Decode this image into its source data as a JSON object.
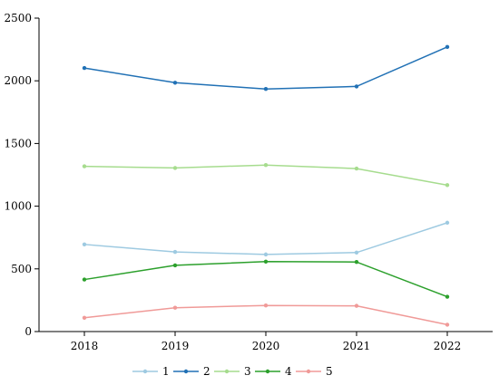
{
  "chart_data": {
    "type": "line",
    "title": "",
    "xlabel": "",
    "ylabel": "",
    "categories": [
      "2018",
      "2019",
      "2020",
      "2021",
      "2022"
    ],
    "ylim": [
      0,
      2500
    ],
    "yticks": [
      0,
      500,
      1000,
      1500,
      2000,
      2500
    ],
    "ytick_labels": [
      "0",
      "500",
      "1000",
      "1500",
      "2000",
      "2500"
    ],
    "grid": false,
    "legend_position": "bottom",
    "series": [
      {
        "name": "1",
        "color": "#9ecae1",
        "values": [
          695,
          635,
          615,
          630,
          868
        ]
      },
      {
        "name": "2",
        "color": "#2171b5",
        "values": [
          2102,
          1985,
          1935,
          1955,
          2270
        ]
      },
      {
        "name": "3",
        "color": "#a6dc8e",
        "values": [
          1318,
          1305,
          1328,
          1300,
          1168
        ]
      },
      {
        "name": "4",
        "color": "#2ca02c",
        "values": [
          415,
          528,
          558,
          555,
          278
        ]
      },
      {
        "name": "5",
        "color": "#f09a98",
        "values": [
          110,
          190,
          208,
          205,
          55
        ]
      }
    ]
  }
}
